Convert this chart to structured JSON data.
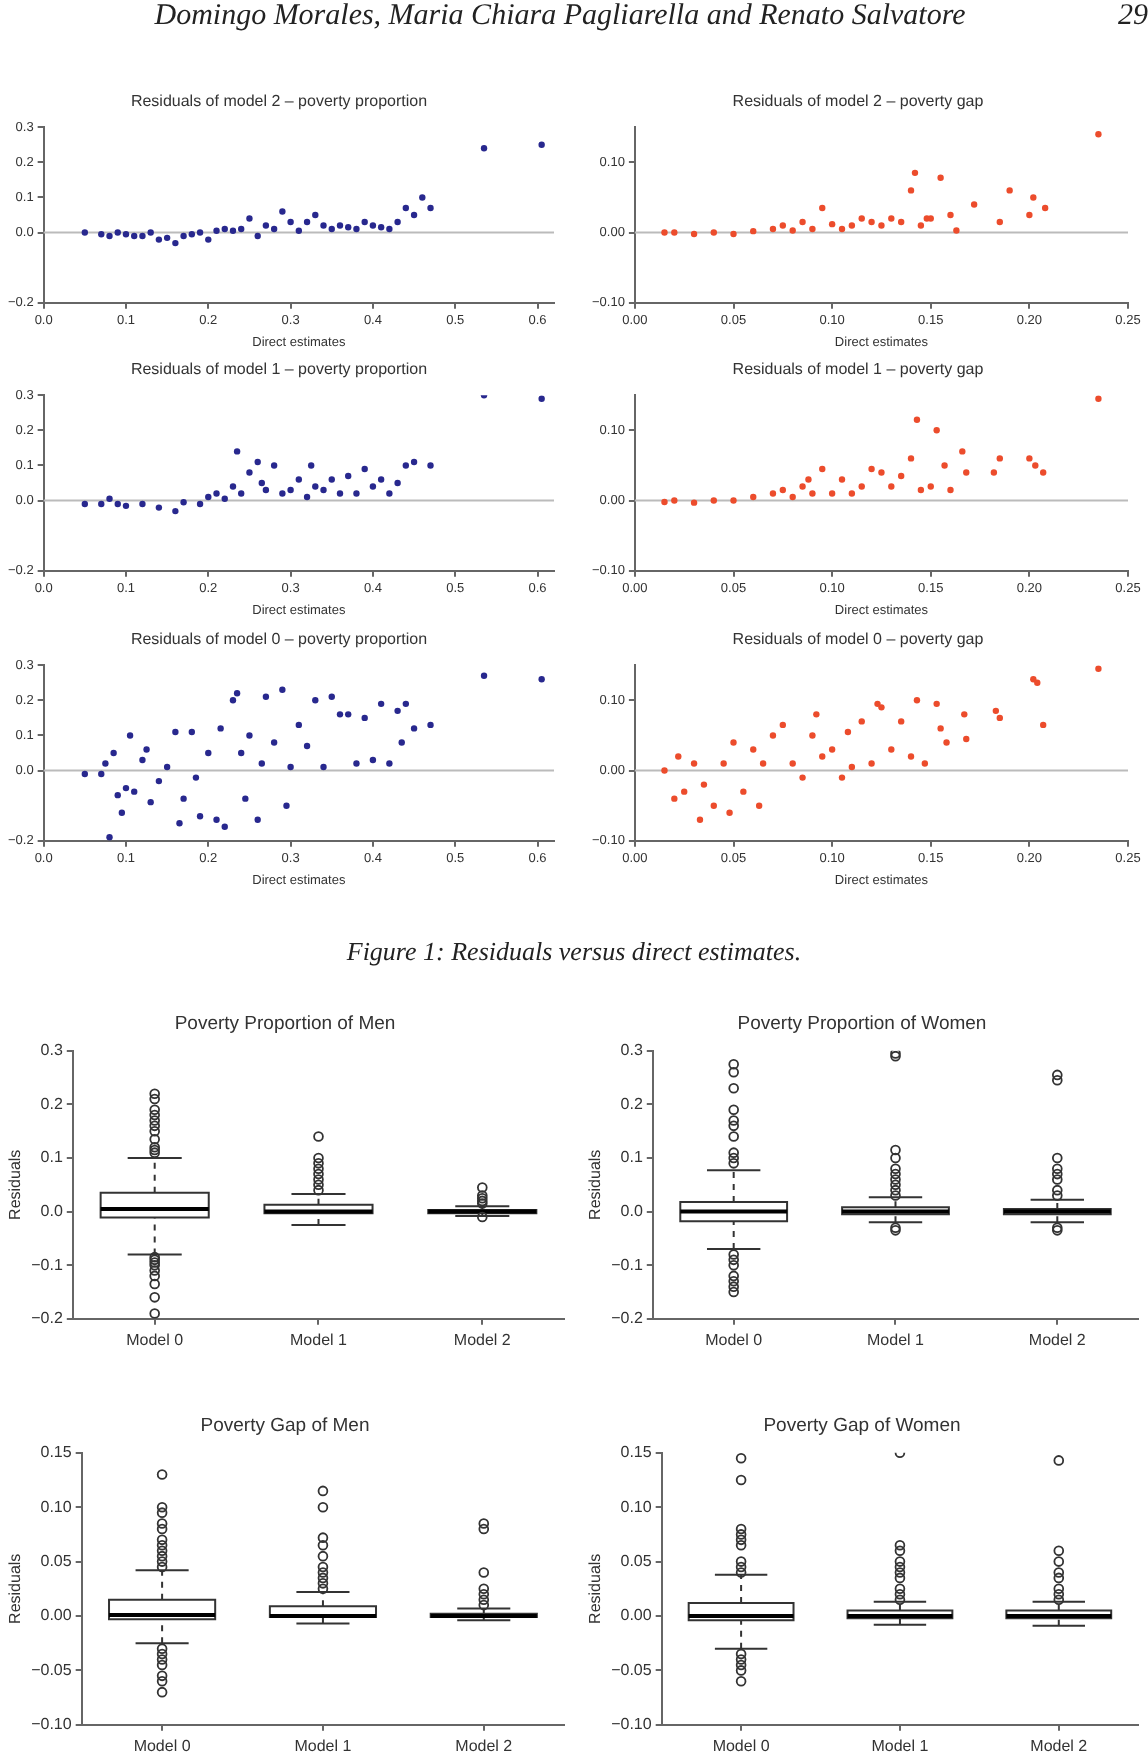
{
  "chart_data": [
    {
      "type": "scatter",
      "title": "Residuals of model 2 – poverty proportion",
      "xlabel": "Direct estimates",
      "marker": "circle",
      "color": "#28288e",
      "annotations": [
        "Domingo Morales, Maria Chiara Pagliarella and Renato Salvatore",
        "29"
      ],
      "xlim": [
        0,
        0.62
      ],
      "ylim": [
        -0.2,
        0.3
      ],
      "xticks": [
        {
          "value": 0,
          "label": "0.0"
        },
        {
          "value": 0.1,
          "label": "0.1"
        },
        {
          "value": 0.2,
          "label": "0.2"
        },
        {
          "value": 0.3,
          "label": "0.3"
        },
        {
          "value": 0.4,
          "label": "0.4"
        },
        {
          "value": 0.5,
          "label": "0.5"
        },
        {
          "value": 0.6,
          "label": "0.6"
        }
      ],
      "yticks": [
        {
          "value": -0.2,
          "label": "−0.2"
        },
        {
          "value": 0,
          "label": "0.0"
        },
        {
          "value": 0.1,
          "label": "0.1"
        },
        {
          "value": 0.2,
          "label": "0.2"
        },
        {
          "value": 0.3,
          "label": "0.3"
        }
      ],
      "ref_lines": [
        {
          "axis": "y",
          "value": 0,
          "color": "#bbbbbb"
        }
      ],
      "x": [
        0.05,
        0.07,
        0.08,
        0.09,
        0.1,
        0.11,
        0.12,
        0.13,
        0.14,
        0.15,
        0.16,
        0.17,
        0.18,
        0.19,
        0.2,
        0.21,
        0.22,
        0.23,
        0.24,
        0.25,
        0.26,
        0.27,
        0.28,
        0.29,
        0.3,
        0.31,
        0.32,
        0.33,
        0.34,
        0.35,
        0.36,
        0.37,
        0.38,
        0.39,
        0.4,
        0.41,
        0.42,
        0.43,
        0.44,
        0.45,
        0.46,
        0.47,
        0.535,
        0.605
      ],
      "values": [
        0,
        -0.005,
        -0.01,
        0,
        -0.005,
        -0.01,
        -0.01,
        0,
        -0.02,
        -0.015,
        -0.03,
        -0.01,
        -0.005,
        0,
        -0.02,
        0.005,
        0.01,
        0.005,
        0.01,
        0.04,
        -0.01,
        0.02,
        0.01,
        0.06,
        0.03,
        0.005,
        0.03,
        0.05,
        0.02,
        0.01,
        0.02,
        0.015,
        0.01,
        0.03,
        0.02,
        0.015,
        0.01,
        0.03,
        0.07,
        0.05,
        0.1,
        0.07,
        0.24,
        0.25
      ]
    },
    {
      "type": "scatter",
      "title": "Residuals of model 2 – poverty gap",
      "xlabel": "Direct estimates",
      "marker": "circle",
      "color": "#ec4c2c",
      "xlim": [
        0,
        0.25
      ],
      "ylim": [
        -0.1,
        0.15
      ],
      "xticks": [
        {
          "value": 0,
          "label": "0.00"
        },
        {
          "value": 0.05,
          "label": "0.05"
        },
        {
          "value": 0.1,
          "label": "0.10"
        },
        {
          "value": 0.15,
          "label": "0.15"
        },
        {
          "value": 0.2,
          "label": "0.20"
        },
        {
          "value": 0.25,
          "label": "0.25"
        }
      ],
      "yticks": [
        {
          "value": -0.1,
          "label": "−0.10"
        },
        {
          "value": 0,
          "label": "0.00"
        },
        {
          "value": 0.1,
          "label": "0.10"
        }
      ],
      "ref_lines": [
        {
          "axis": "y",
          "value": 0,
          "color": "#bbbbbb"
        }
      ],
      "x": [
        0.015,
        0.02,
        0.03,
        0.04,
        0.05,
        0.06,
        0.07,
        0.075,
        0.08,
        0.085,
        0.09,
        0.095,
        0.1,
        0.105,
        0.11,
        0.115,
        0.12,
        0.125,
        0.13,
        0.135,
        0.14,
        0.142,
        0.145,
        0.148,
        0.15,
        0.155,
        0.16,
        0.163,
        0.172,
        0.185,
        0.19,
        0.2,
        0.202,
        0.208,
        0.235
      ],
      "values": [
        0,
        0,
        -0.002,
        0,
        -0.002,
        0.002,
        0.005,
        0.01,
        0.003,
        0.015,
        0.005,
        0.035,
        0.012,
        0.005,
        0.01,
        0.02,
        0.015,
        0.01,
        0.02,
        0.015,
        0.06,
        0.085,
        0.01,
        0.02,
        0.02,
        0.078,
        0.025,
        0.003,
        0.04,
        0.015,
        0.06,
        0.025,
        0.05,
        0.035,
        0.14
      ]
    },
    {
      "type": "scatter",
      "title": "Residuals of model 1 – poverty proportion",
      "xlabel": "Direct estimates",
      "marker": "circle",
      "color": "#28288e",
      "xlim": [
        0,
        0.62
      ],
      "ylim": [
        -0.2,
        0.3
      ],
      "xticks": [
        {
          "value": 0,
          "label": "0.0"
        },
        {
          "value": 0.1,
          "label": "0.1"
        },
        {
          "value": 0.2,
          "label": "0.2"
        },
        {
          "value": 0.3,
          "label": "0.3"
        },
        {
          "value": 0.4,
          "label": "0.4"
        },
        {
          "value": 0.5,
          "label": "0.5"
        },
        {
          "value": 0.6,
          "label": "0.6"
        }
      ],
      "yticks": [
        {
          "value": -0.2,
          "label": "−0.2"
        },
        {
          "value": 0,
          "label": "0.0"
        },
        {
          "value": 0.1,
          "label": "0.1"
        },
        {
          "value": 0.2,
          "label": "0.2"
        },
        {
          "value": 0.3,
          "label": "0.3"
        }
      ],
      "ref_lines": [
        {
          "axis": "y",
          "value": 0,
          "color": "#bbbbbb"
        }
      ],
      "x": [
        0.05,
        0.07,
        0.08,
        0.09,
        0.1,
        0.12,
        0.14,
        0.16,
        0.17,
        0.19,
        0.2,
        0.21,
        0.22,
        0.23,
        0.235,
        0.24,
        0.25,
        0.26,
        0.265,
        0.27,
        0.28,
        0.29,
        0.3,
        0.31,
        0.32,
        0.325,
        0.33,
        0.34,
        0.35,
        0.36,
        0.37,
        0.38,
        0.39,
        0.4,
        0.41,
        0.42,
        0.43,
        0.44,
        0.45,
        0.47,
        0.535,
        0.605
      ],
      "values": [
        -0.01,
        -0.01,
        0.005,
        -0.01,
        -0.015,
        -0.01,
        -0.02,
        -0.03,
        -0.005,
        -0.01,
        0.01,
        0.02,
        0.005,
        0.04,
        0.14,
        0.02,
        0.08,
        0.11,
        0.05,
        0.03,
        0.1,
        0.02,
        0.03,
        0.06,
        0.01,
        0.1,
        0.04,
        0.03,
        0.06,
        0.02,
        0.07,
        0.02,
        0.09,
        0.04,
        0.06,
        0.02,
        0.05,
        0.1,
        0.11,
        0.1,
        0.3,
        0.29
      ]
    },
    {
      "type": "scatter",
      "title": "Residuals of model 1 – poverty gap",
      "xlabel": "Direct estimates",
      "marker": "circle",
      "color": "#ec4c2c",
      "xlim": [
        0,
        0.25
      ],
      "ylim": [
        -0.1,
        0.15
      ],
      "xticks": [
        {
          "value": 0,
          "label": "0.00"
        },
        {
          "value": 0.05,
          "label": "0.05"
        },
        {
          "value": 0.1,
          "label": "0.10"
        },
        {
          "value": 0.15,
          "label": "0.15"
        },
        {
          "value": 0.2,
          "label": "0.20"
        },
        {
          "value": 0.25,
          "label": "0.25"
        }
      ],
      "yticks": [
        {
          "value": -0.1,
          "label": "−0.10"
        },
        {
          "value": 0,
          "label": "0.00"
        },
        {
          "value": 0.1,
          "label": "0.10"
        }
      ],
      "ref_lines": [
        {
          "axis": "y",
          "value": 0,
          "color": "#bbbbbb"
        }
      ],
      "x": [
        0.015,
        0.02,
        0.03,
        0.04,
        0.05,
        0.06,
        0.07,
        0.075,
        0.08,
        0.085,
        0.088,
        0.09,
        0.095,
        0.1,
        0.105,
        0.11,
        0.115,
        0.12,
        0.125,
        0.13,
        0.135,
        0.14,
        0.143,
        0.145,
        0.15,
        0.153,
        0.157,
        0.16,
        0.166,
        0.168,
        0.182,
        0.185,
        0.2,
        0.203,
        0.207,
        0.235
      ],
      "values": [
        -0.002,
        0,
        -0.003,
        0,
        0,
        0.005,
        0.01,
        0.015,
        0.005,
        0.02,
        0.03,
        0.01,
        0.045,
        0.01,
        0.03,
        0.01,
        0.02,
        0.045,
        0.04,
        0.02,
        0.035,
        0.06,
        0.115,
        0.015,
        0.02,
        0.1,
        0.05,
        0.015,
        0.07,
        0.04,
        0.04,
        0.06,
        0.06,
        0.05,
        0.04,
        0.145
      ]
    },
    {
      "type": "scatter",
      "title": "Residuals of model 0 – poverty proportion",
      "xlabel": "Direct estimates",
      "marker": "circle",
      "color": "#28288e",
      "xlim": [
        0,
        0.62
      ],
      "ylim": [
        -0.2,
        0.3
      ],
      "xticks": [
        {
          "value": 0,
          "label": "0.0"
        },
        {
          "value": 0.1,
          "label": "0.1"
        },
        {
          "value": 0.2,
          "label": "0.2"
        },
        {
          "value": 0.3,
          "label": "0.3"
        },
        {
          "value": 0.4,
          "label": "0.4"
        },
        {
          "value": 0.5,
          "label": "0.5"
        },
        {
          "value": 0.6,
          "label": "0.6"
        }
      ],
      "yticks": [
        {
          "value": -0.2,
          "label": "−0.2"
        },
        {
          "value": 0,
          "label": "0.0"
        },
        {
          "value": 0.1,
          "label": "0.1"
        },
        {
          "value": 0.2,
          "label": "0.2"
        },
        {
          "value": 0.3,
          "label": "0.3"
        }
      ],
      "ref_lines": [
        {
          "axis": "y",
          "value": 0,
          "color": "#bbbbbb"
        }
      ],
      "x": [
        0.05,
        0.07,
        0.075,
        0.08,
        0.085,
        0.09,
        0.095,
        0.1,
        0.105,
        0.11,
        0.12,
        0.125,
        0.13,
        0.14,
        0.15,
        0.16,
        0.165,
        0.17,
        0.18,
        0.185,
        0.19,
        0.2,
        0.21,
        0.215,
        0.22,
        0.23,
        0.235,
        0.24,
        0.245,
        0.25,
        0.26,
        0.265,
        0.27,
        0.28,
        0.29,
        0.295,
        0.3,
        0.31,
        0.32,
        0.33,
        0.34,
        0.35,
        0.36,
        0.37,
        0.38,
        0.39,
        0.4,
        0.41,
        0.42,
        0.43,
        0.435,
        0.44,
        0.45,
        0.47,
        0.535,
        0.605
      ],
      "values": [
        -0.01,
        -0.01,
        0.02,
        -0.19,
        0.05,
        -0.07,
        -0.12,
        -0.05,
        0.1,
        -0.06,
        0.03,
        0.06,
        -0.09,
        -0.03,
        0.01,
        0.11,
        -0.15,
        -0.08,
        0.11,
        -0.02,
        -0.13,
        0.05,
        -0.14,
        0.12,
        -0.16,
        0.2,
        0.22,
        0.05,
        -0.08,
        0.1,
        -0.14,
        0.02,
        0.21,
        0.08,
        0.23,
        -0.1,
        0.01,
        0.13,
        0.07,
        0.2,
        0.01,
        0.21,
        0.16,
        0.16,
        0.02,
        0.15,
        0.03,
        0.19,
        0.02,
        0.17,
        0.08,
        0.19,
        0.12,
        0.13,
        0.27,
        0.26
      ]
    },
    {
      "type": "scatter",
      "title": "Residuals of model 0 – poverty gap",
      "xlabel": "Direct estimates",
      "marker": "circle",
      "color": "#ec4c2c",
      "annotations": [
        "Figure 1: Residuals versus direct estimates."
      ],
      "xlim": [
        0,
        0.25
      ],
      "ylim": [
        -0.1,
        0.15
      ],
      "xticks": [
        {
          "value": 0,
          "label": "0.00"
        },
        {
          "value": 0.05,
          "label": "0.05"
        },
        {
          "value": 0.1,
          "label": "0.10"
        },
        {
          "value": 0.15,
          "label": "0.15"
        },
        {
          "value": 0.2,
          "label": "0.20"
        },
        {
          "value": 0.25,
          "label": "0.25"
        }
      ],
      "yticks": [
        {
          "value": -0.1,
          "label": "−0.10"
        },
        {
          "value": 0,
          "label": "0.00"
        },
        {
          "value": 0.1,
          "label": "0.10"
        }
      ],
      "ref_lines": [
        {
          "axis": "y",
          "value": 0,
          "color": "#bbbbbb"
        }
      ],
      "x": [
        0.015,
        0.02,
        0.022,
        0.025,
        0.03,
        0.033,
        0.035,
        0.04,
        0.045,
        0.048,
        0.05,
        0.055,
        0.06,
        0.063,
        0.065,
        0.07,
        0.075,
        0.08,
        0.085,
        0.09,
        0.092,
        0.095,
        0.1,
        0.105,
        0.108,
        0.11,
        0.115,
        0.12,
        0.123,
        0.125,
        0.13,
        0.135,
        0.14,
        0.143,
        0.147,
        0.153,
        0.155,
        0.158,
        0.167,
        0.168,
        0.183,
        0.185,
        0.202,
        0.204,
        0.207,
        0.235
      ],
      "values": [
        0,
        -0.04,
        0.02,
        -0.03,
        0.01,
        -0.07,
        -0.02,
        -0.05,
        0.01,
        -0.06,
        0.04,
        -0.03,
        0.03,
        -0.05,
        0.01,
        0.05,
        0.065,
        0.01,
        -0.01,
        0.05,
        0.08,
        0.02,
        0.03,
        -0.01,
        0.055,
        0.005,
        0.07,
        0.01,
        0.095,
        0.09,
        0.03,
        0.07,
        0.02,
        0.1,
        0.01,
        0.095,
        0.06,
        0.04,
        0.08,
        0.045,
        0.085,
        0.075,
        0.13,
        0.125,
        0.065,
        0.145
      ]
    },
    {
      "type": "box",
      "title": "Poverty Proportion of Men",
      "ylabel": "Residuals",
      "categories": [
        "Model 0",
        "Model 1",
        "Model 2"
      ],
      "ylim": [
        -0.2,
        0.3
      ],
      "yticks": [
        {
          "value": -0.2,
          "label": "−0.2"
        },
        {
          "value": -0.1,
          "label": "−0.1"
        },
        {
          "value": 0,
          "label": "0.0"
        },
        {
          "value": 0.1,
          "label": "0.1"
        },
        {
          "value": 0.2,
          "label": "0.2"
        },
        {
          "value": 0.3,
          "label": "0.3"
        }
      ],
      "boxes": [
        {
          "low": -0.08,
          "q1": -0.011,
          "median": 0.005,
          "q3": 0.035,
          "high": 0.1,
          "outliers": [
            0.11,
            0.115,
            0.12,
            0.135,
            0.15,
            0.16,
            0.17,
            0.18,
            0.19,
            0.21,
            0.22,
            -0.085,
            -0.09,
            -0.095,
            -0.1,
            -0.11,
            -0.12,
            -0.135,
            -0.16,
            -0.19
          ]
        },
        {
          "low": -0.025,
          "q1": -0.003,
          "median": 0,
          "q3": 0.013,
          "high": 0.033,
          "outliers": [
            0.04,
            0.05,
            0.06,
            0.07,
            0.08,
            0.09,
            0.1,
            0.14
          ]
        },
        {
          "low": -0.008,
          "q1": -0.003,
          "median": 0,
          "q3": 0.003,
          "high": 0.01,
          "outliers": [
            0.015,
            0.02,
            0.025,
            0.03,
            0.045,
            -0.01
          ]
        }
      ]
    },
    {
      "type": "box",
      "title": "Poverty Proportion of Women",
      "ylabel": "Residuals",
      "categories": [
        "Model 0",
        "Model 1",
        "Model 2"
      ],
      "ylim": [
        -0.2,
        0.3
      ],
      "yticks": [
        {
          "value": -0.2,
          "label": "−0.2"
        },
        {
          "value": -0.1,
          "label": "−0.1"
        },
        {
          "value": 0,
          "label": "0.0"
        },
        {
          "value": 0.1,
          "label": "0.1"
        },
        {
          "value": 0.2,
          "label": "0.2"
        },
        {
          "value": 0.3,
          "label": "0.3"
        }
      ],
      "boxes": [
        {
          "low": -0.07,
          "q1": -0.018,
          "median": 0,
          "q3": 0.018,
          "high": 0.077,
          "outliers": [
            0.09,
            0.1,
            0.11,
            0.14,
            0.16,
            0.17,
            0.19,
            0.23,
            0.26,
            0.275,
            -0.08,
            -0.09,
            -0.1,
            -0.12,
            -0.13,
            -0.14,
            -0.15
          ]
        },
        {
          "low": -0.02,
          "q1": -0.005,
          "median": 0,
          "q3": 0.008,
          "high": 0.027,
          "outliers": [
            0.03,
            0.04,
            0.05,
            0.06,
            0.07,
            0.08,
            0.1,
            0.115,
            0.29,
            0.295,
            -0.03,
            -0.035
          ]
        },
        {
          "low": -0.02,
          "q1": -0.005,
          "median": 0,
          "q3": 0.005,
          "high": 0.022,
          "outliers": [
            0.03,
            0.04,
            0.06,
            0.07,
            0.08,
            0.1,
            0.245,
            0.255,
            -0.03,
            -0.035
          ]
        }
      ]
    },
    {
      "type": "box",
      "title": "Poverty Gap of Men",
      "ylabel": "Residuals",
      "categories": [
        "Model 0",
        "Model 1",
        "Model 2"
      ],
      "ylim": [
        -0.1,
        0.15
      ],
      "yticks": [
        {
          "value": -0.1,
          "label": "−0.10"
        },
        {
          "value": -0.05,
          "label": "−0.05"
        },
        {
          "value": 0,
          "label": "0.00"
        },
        {
          "value": 0.05,
          "label": "0.05"
        },
        {
          "value": 0.1,
          "label": "0.10"
        },
        {
          "value": 0.15,
          "label": "0.15"
        }
      ],
      "boxes": [
        {
          "low": -0.025,
          "q1": -0.003,
          "median": 0.001,
          "q3": 0.015,
          "high": 0.042,
          "outliers": [
            0.045,
            0.05,
            0.055,
            0.06,
            0.065,
            0.07,
            0.08,
            0.085,
            0.095,
            0.1,
            0.13,
            -0.03,
            -0.035,
            -0.04,
            -0.045,
            -0.055,
            -0.06,
            -0.07
          ]
        },
        {
          "low": -0.007,
          "q1": -0.001,
          "median": 0,
          "q3": 0.009,
          "high": 0.022,
          "outliers": [
            0.025,
            0.03,
            0.035,
            0.04,
            0.045,
            0.055,
            0.065,
            0.072,
            0.1,
            0.115
          ]
        },
        {
          "low": -0.004,
          "q1": -0.001,
          "median": 0,
          "q3": 0.002,
          "high": 0.007,
          "outliers": [
            0.01,
            0.015,
            0.02,
            0.025,
            0.04,
            0.08,
            0.085
          ]
        }
      ]
    },
    {
      "type": "box",
      "title": "Poverty Gap of Women",
      "ylabel": "Residuals",
      "categories": [
        "Model 0",
        "Model 1",
        "Model 2"
      ],
      "ylim": [
        -0.1,
        0.15
      ],
      "yticks": [
        {
          "value": -0.1,
          "label": "−0.10"
        },
        {
          "value": -0.05,
          "label": "−0.05"
        },
        {
          "value": 0,
          "label": "0.00"
        },
        {
          "value": 0.05,
          "label": "0.05"
        },
        {
          "value": 0.1,
          "label": "0.10"
        },
        {
          "value": 0.15,
          "label": "0.15"
        }
      ],
      "boxes": [
        {
          "low": -0.03,
          "q1": -0.004,
          "median": 0,
          "q3": 0.012,
          "high": 0.038,
          "outliers": [
            0.04,
            0.045,
            0.05,
            0.065,
            0.07,
            0.075,
            0.08,
            0.125,
            0.145,
            -0.035,
            -0.04,
            -0.045,
            -0.05,
            -0.06
          ]
        },
        {
          "low": -0.008,
          "q1": -0.002,
          "median": 0,
          "q3": 0.005,
          "high": 0.013,
          "outliers": [
            0.015,
            0.02,
            0.025,
            0.035,
            0.04,
            0.045,
            0.05,
            0.06,
            0.065,
            0.15
          ]
        },
        {
          "low": -0.009,
          "q1": -0.002,
          "median": 0,
          "q3": 0.005,
          "high": 0.013,
          "outliers": [
            0.015,
            0.02,
            0.025,
            0.035,
            0.04,
            0.05,
            0.06,
            0.143
          ]
        }
      ]
    }
  ]
}
